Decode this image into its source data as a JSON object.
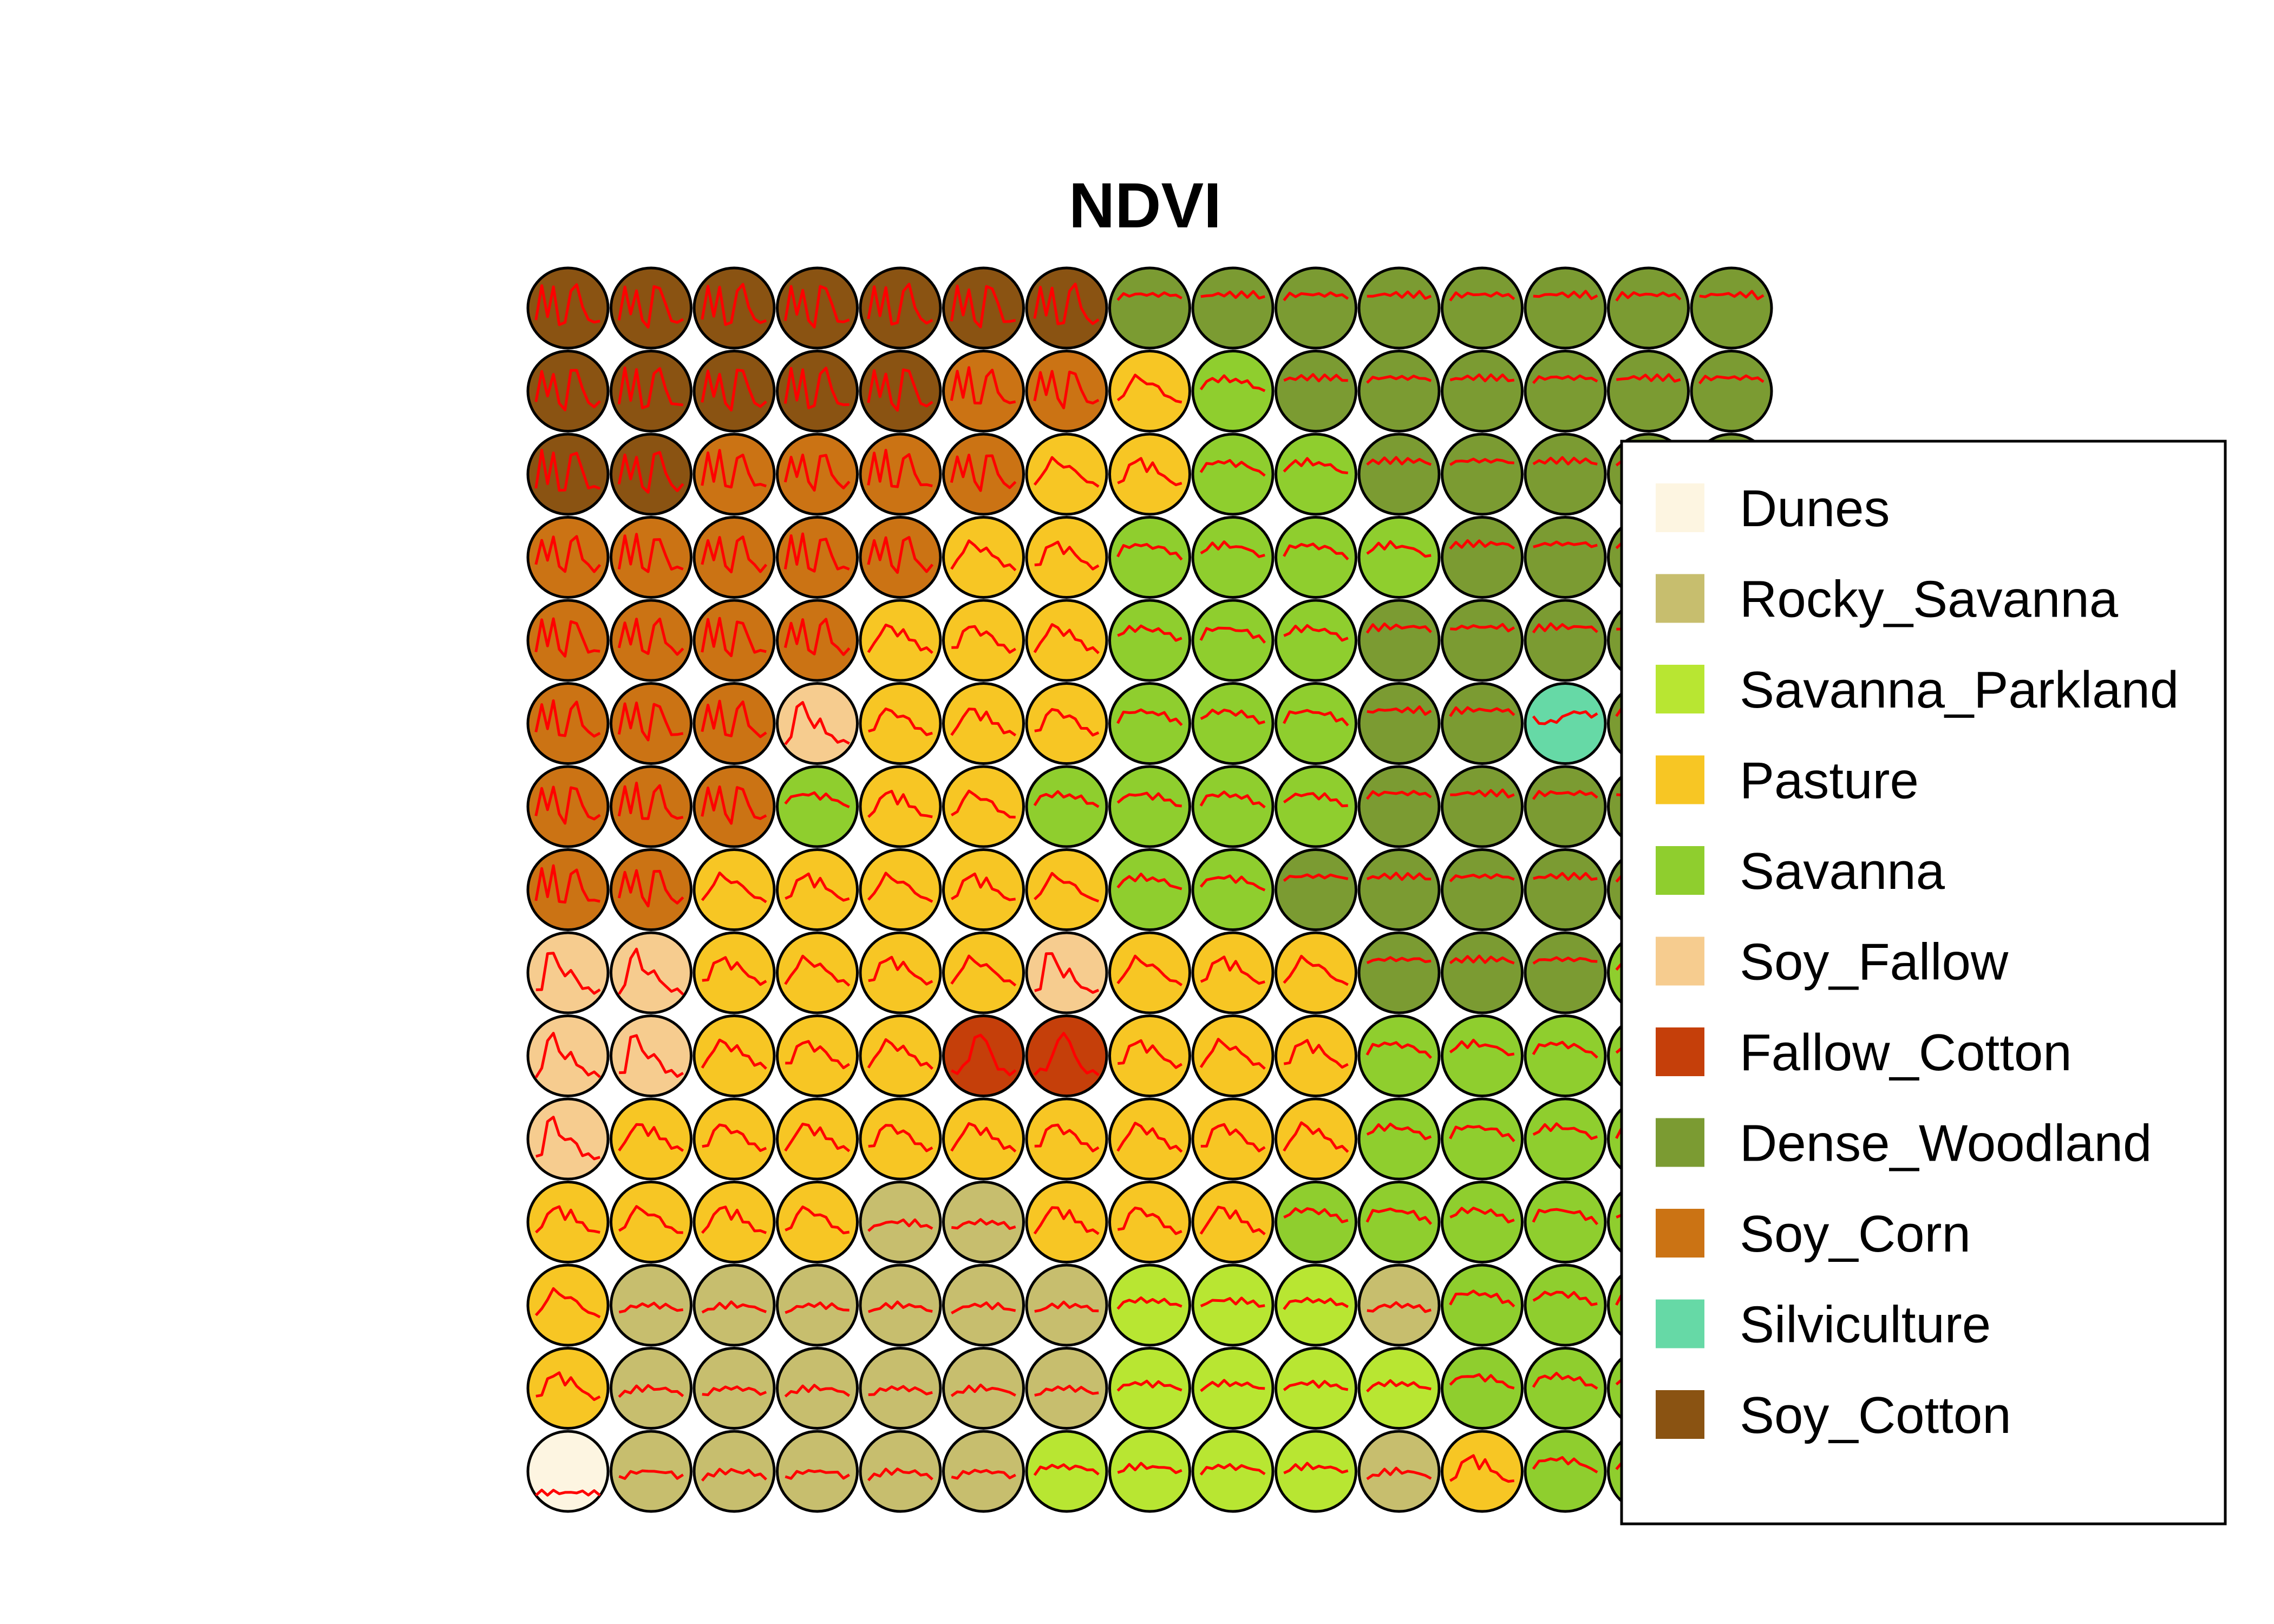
{
  "chart_data": {
    "type": "heatmap",
    "subtype": "som-grid",
    "title": "NDVI",
    "grid": {
      "rows": 15,
      "cols": 15
    },
    "classes": [
      {
        "name": "Dunes",
        "color": "#FDF5E1"
      },
      {
        "name": "Rocky_Savanna",
        "color": "#C7BE6E"
      },
      {
        "name": "Savanna_Parkland",
        "color": "#B8E632"
      },
      {
        "name": "Pasture",
        "color": "#F7C624"
      },
      {
        "name": "Savanna",
        "color": "#8FCE2E"
      },
      {
        "name": "Soy_Fallow",
        "color": "#F6CC8F"
      },
      {
        "name": "Fallow_Cotton",
        "color": "#C53F0A"
      },
      {
        "name": "Dense_Woodland",
        "color": "#7B9B32"
      },
      {
        "name": "Soy_Corn",
        "color": "#CB7314"
      },
      {
        "name": "Silviculture",
        "color": "#66D9A6"
      },
      {
        "name": "Soy_Cotton",
        "color": "#8A5312"
      }
    ],
    "cells": [
      [
        "Soy_Cotton",
        "Soy_Cotton",
        "Soy_Cotton",
        "Soy_Cotton",
        "Soy_Cotton",
        "Soy_Cotton",
        "Soy_Cotton",
        "Dense_Woodland",
        "Dense_Woodland",
        "Dense_Woodland",
        "Dense_Woodland",
        "Dense_Woodland",
        "Dense_Woodland",
        "Dense_Woodland",
        "Dense_Woodland"
      ],
      [
        "Soy_Cotton",
        "Soy_Cotton",
        "Soy_Cotton",
        "Soy_Cotton",
        "Soy_Cotton",
        "Soy_Corn",
        "Soy_Corn",
        "Pasture",
        "Savanna",
        "Dense_Woodland",
        "Dense_Woodland",
        "Dense_Woodland",
        "Dense_Woodland",
        "Dense_Woodland",
        "Dense_Woodland"
      ],
      [
        "Soy_Cotton",
        "Soy_Cotton",
        "Soy_Corn",
        "Soy_Corn",
        "Soy_Corn",
        "Soy_Corn",
        "Pasture",
        "Pasture",
        "Savanna",
        "Savanna",
        "Dense_Woodland",
        "Dense_Woodland",
        "Dense_Woodland",
        "Dense_Woodland",
        "Dense_Woodland"
      ],
      [
        "Soy_Corn",
        "Soy_Corn",
        "Soy_Corn",
        "Soy_Corn",
        "Soy_Corn",
        "Pasture",
        "Pasture",
        "Savanna",
        "Savanna",
        "Savanna",
        "Savanna",
        "Dense_Woodland",
        "Dense_Woodland",
        "Dense_Woodland",
        "Dense_Woodland"
      ],
      [
        "Soy_Corn",
        "Soy_Corn",
        "Soy_Corn",
        "Soy_Corn",
        "Pasture",
        "Pasture",
        "Pasture",
        "Savanna",
        "Savanna",
        "Savanna",
        "Dense_Woodland",
        "Dense_Woodland",
        "Dense_Woodland",
        "Dense_Woodland",
        "Dense_Woodland"
      ],
      [
        "Soy_Corn",
        "Soy_Corn",
        "Soy_Corn",
        "Soy_Fallow",
        "Pasture",
        "Pasture",
        "Pasture",
        "Savanna",
        "Savanna",
        "Savanna",
        "Dense_Woodland",
        "Dense_Woodland",
        "Silviculture",
        "Dense_Woodland",
        "Dense_Woodland"
      ],
      [
        "Soy_Corn",
        "Soy_Corn",
        "Soy_Corn",
        "Savanna",
        "Pasture",
        "Pasture",
        "Savanna",
        "Savanna",
        "Savanna",
        "Savanna",
        "Dense_Woodland",
        "Dense_Woodland",
        "Dense_Woodland",
        "Dense_Woodland",
        "Dense_Woodland"
      ],
      [
        "Soy_Corn",
        "Soy_Corn",
        "Pasture",
        "Pasture",
        "Pasture",
        "Pasture",
        "Pasture",
        "Savanna",
        "Savanna",
        "Dense_Woodland",
        "Dense_Woodland",
        "Dense_Woodland",
        "Dense_Woodland",
        "Dense_Woodland",
        "Dense_Woodland"
      ],
      [
        "Soy_Fallow",
        "Soy_Fallow",
        "Pasture",
        "Pasture",
        "Pasture",
        "Pasture",
        "Soy_Fallow",
        "Pasture",
        "Pasture",
        "Pasture",
        "Dense_Woodland",
        "Dense_Woodland",
        "Dense_Woodland",
        "Savanna",
        "Savanna"
      ],
      [
        "Soy_Fallow",
        "Soy_Fallow",
        "Pasture",
        "Pasture",
        "Pasture",
        "Fallow_Cotton",
        "Fallow_Cotton",
        "Pasture",
        "Pasture",
        "Pasture",
        "Savanna",
        "Savanna",
        "Savanna",
        "Savanna",
        "Savanna"
      ],
      [
        "Soy_Fallow",
        "Pasture",
        "Pasture",
        "Pasture",
        "Pasture",
        "Pasture",
        "Pasture",
        "Pasture",
        "Pasture",
        "Pasture",
        "Savanna",
        "Savanna",
        "Savanna",
        "Savanna",
        "Savanna"
      ],
      [
        "Pasture",
        "Pasture",
        "Pasture",
        "Pasture",
        "Rocky_Savanna",
        "Rocky_Savanna",
        "Pasture",
        "Pasture",
        "Pasture",
        "Savanna",
        "Savanna",
        "Savanna",
        "Savanna",
        "Savanna",
        "Savanna"
      ],
      [
        "Pasture",
        "Rocky_Savanna",
        "Rocky_Savanna",
        "Rocky_Savanna",
        "Rocky_Savanna",
        "Rocky_Savanna",
        "Rocky_Savanna",
        "Savanna_Parkland",
        "Savanna_Parkland",
        "Savanna_Parkland",
        "Rocky_Savanna",
        "Savanna",
        "Savanna",
        "Savanna",
        "Savanna"
      ],
      [
        "Pasture",
        "Rocky_Savanna",
        "Rocky_Savanna",
        "Rocky_Savanna",
        "Rocky_Savanna",
        "Rocky_Savanna",
        "Rocky_Savanna",
        "Savanna_Parkland",
        "Savanna_Parkland",
        "Savanna_Parkland",
        "Savanna_Parkland",
        "Savanna",
        "Savanna",
        "Savanna",
        "Savanna"
      ],
      [
        "Dunes",
        "Rocky_Savanna",
        "Rocky_Savanna",
        "Rocky_Savanna",
        "Rocky_Savanna",
        "Rocky_Savanna",
        "Savanna_Parkland",
        "Savanna_Parkland",
        "Savanna_Parkland",
        "Savanna_Parkland",
        "Rocky_Savanna",
        "Pasture",
        "Savanna",
        "Savanna",
        "Savanna"
      ]
    ],
    "profile_color": "#FF0000",
    "legend": {
      "position": "right"
    }
  }
}
